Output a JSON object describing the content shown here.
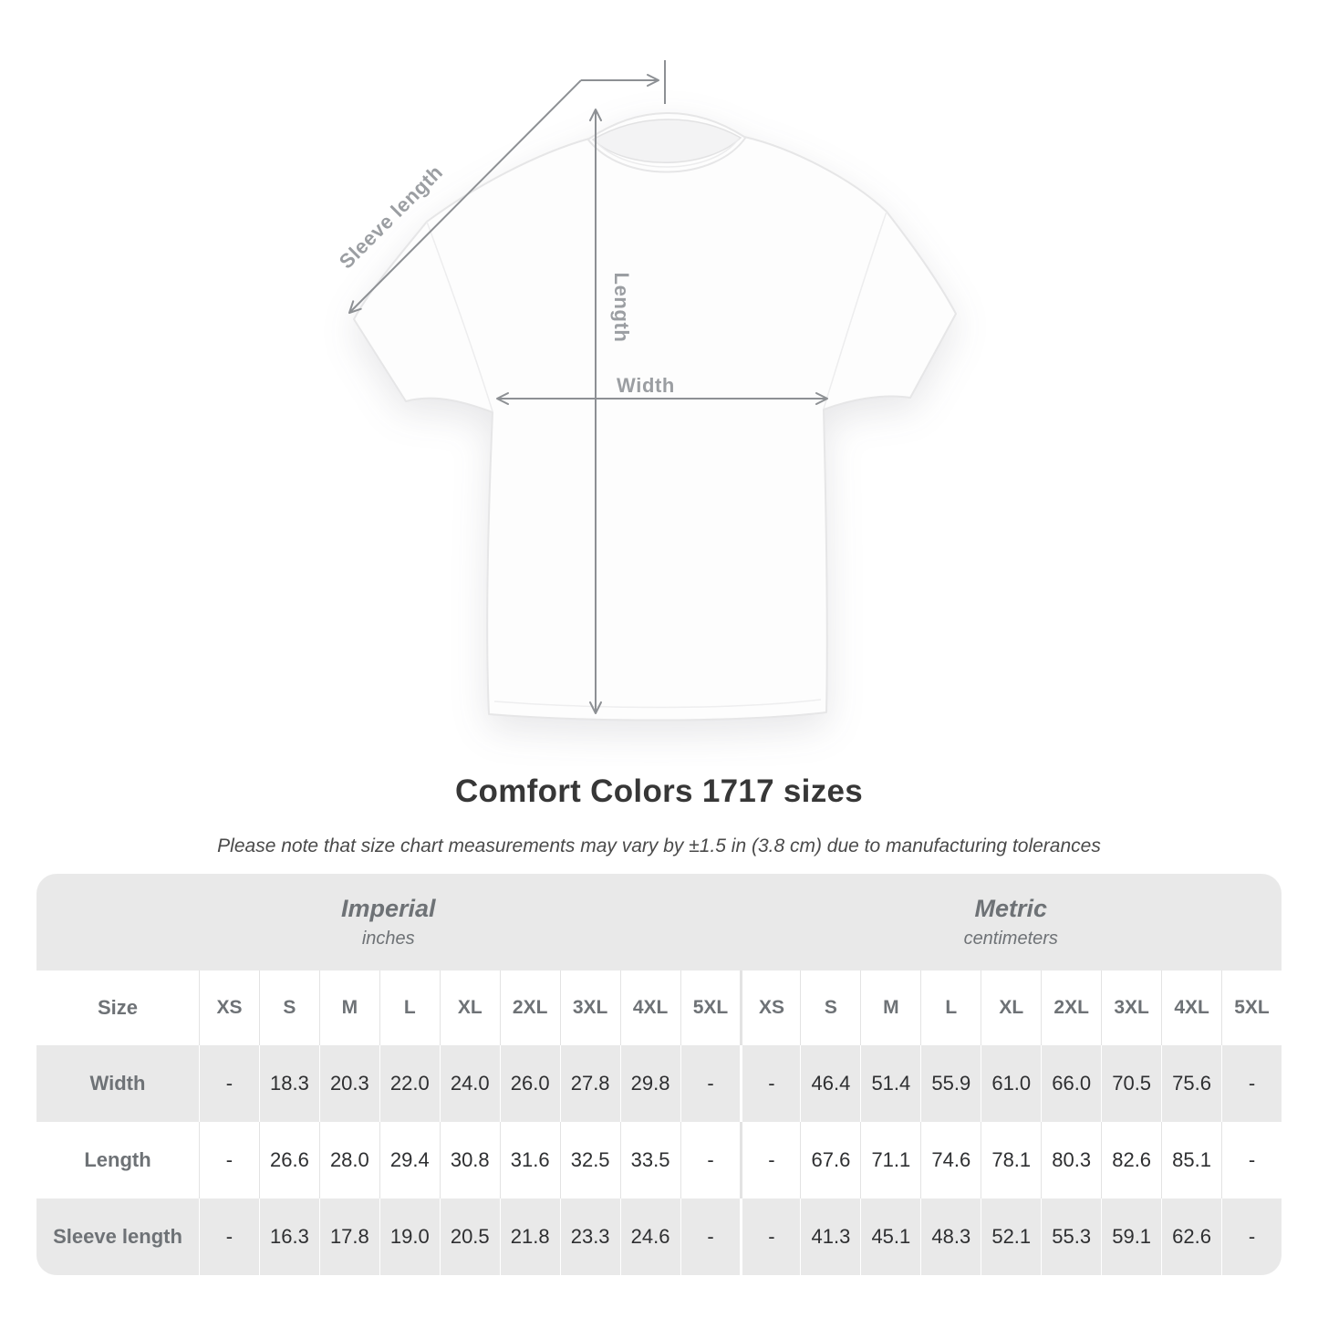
{
  "diagram": {
    "sleeve_label": "Sleeve length",
    "length_label": "Length",
    "width_label": "Width"
  },
  "header": {
    "title": "Comfort Colors 1717 sizes",
    "note": "Please note that size chart measurements may vary by ±1.5 in (3.8 cm) due to manufacturing tolerances"
  },
  "table": {
    "imperial_group": {
      "label": "Imperial",
      "unit": "inches"
    },
    "metric_group": {
      "label": "Metric",
      "unit": "centimeters"
    },
    "size_header": "Size",
    "sizes": [
      "XS",
      "S",
      "M",
      "L",
      "XL",
      "2XL",
      "3XL",
      "4XL",
      "5XL"
    ],
    "rows": [
      {
        "label": "Width",
        "imperial": [
          "-",
          "18.3",
          "20.3",
          "22.0",
          "24.0",
          "26.0",
          "27.8",
          "29.8",
          "-"
        ],
        "metric": [
          "-",
          "46.4",
          "51.4",
          "55.9",
          "61.0",
          "66.0",
          "70.5",
          "75.6",
          "-"
        ]
      },
      {
        "label": "Length",
        "imperial": [
          "-",
          "26.6",
          "28.0",
          "29.4",
          "30.8",
          "31.6",
          "32.5",
          "33.5",
          "-"
        ],
        "metric": [
          "-",
          "67.6",
          "71.1",
          "74.6",
          "78.1",
          "80.3",
          "82.6",
          "85.1",
          "-"
        ]
      },
      {
        "label": "Sleeve length",
        "imperial": [
          "-",
          "16.3",
          "17.8",
          "19.0",
          "20.5",
          "21.8",
          "23.3",
          "24.6",
          "-"
        ],
        "metric": [
          "-",
          "41.3",
          "45.1",
          "48.3",
          "52.1",
          "55.3",
          "59.1",
          "62.6",
          "-"
        ]
      }
    ]
  },
  "colors": {
    "band_gray": "#e9e9e9",
    "label_text": "#6e7276",
    "value_text": "#2e2f31",
    "annotation_gray": "#8d9094",
    "title_text": "#373737"
  },
  "chart_data": {
    "type": "table",
    "title": "Comfort Colors 1717 sizes",
    "note": "Please note that size chart measurements may vary by ±1.5 in (3.8 cm) due to manufacturing tolerances",
    "unit_groups": [
      {
        "name": "Imperial",
        "unit": "inches"
      },
      {
        "name": "Metric",
        "unit": "centimeters"
      }
    ],
    "sizes": [
      "XS",
      "S",
      "M",
      "L",
      "XL",
      "2XL",
      "3XL",
      "4XL",
      "5XL"
    ],
    "measurements": [
      {
        "name": "Width",
        "imperial_inches": [
          null,
          18.3,
          20.3,
          22.0,
          24.0,
          26.0,
          27.8,
          29.8,
          null
        ],
        "metric_cm": [
          null,
          46.4,
          51.4,
          55.9,
          61.0,
          66.0,
          70.5,
          75.6,
          null
        ]
      },
      {
        "name": "Length",
        "imperial_inches": [
          null,
          26.6,
          28.0,
          29.4,
          30.8,
          31.6,
          32.5,
          33.5,
          null
        ],
        "metric_cm": [
          null,
          67.6,
          71.1,
          74.6,
          78.1,
          80.3,
          82.6,
          85.1,
          null
        ]
      },
      {
        "name": "Sleeve length",
        "imperial_inches": [
          null,
          16.3,
          17.8,
          19.0,
          20.5,
          21.8,
          23.3,
          24.6,
          null
        ],
        "metric_cm": [
          null,
          41.3,
          45.1,
          48.3,
          52.1,
          55.3,
          59.1,
          62.6,
          null
        ]
      }
    ],
    "diagram_annotations": [
      "Sleeve length",
      "Length",
      "Width"
    ]
  }
}
